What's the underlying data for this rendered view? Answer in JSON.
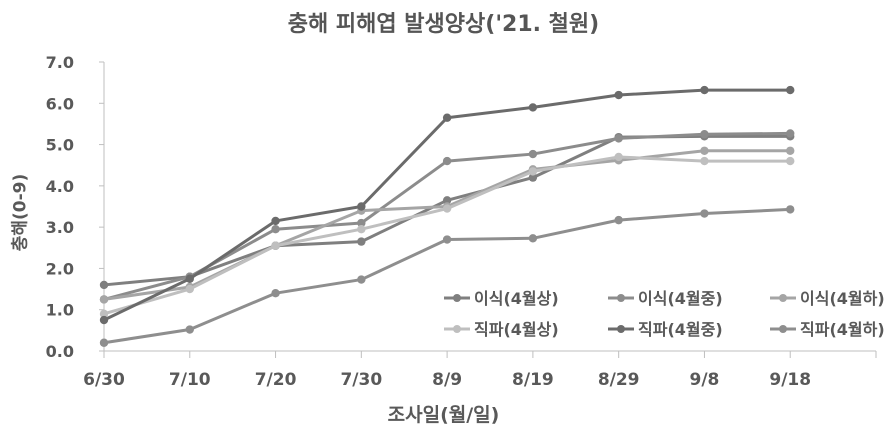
{
  "chart_data": {
    "type": "line",
    "title": "충해 피해엽 발생양상('21. 철원)",
    "xlabel": "조사일(월/일)",
    "ylabel": "충해(0-9)",
    "categories": [
      "6/30",
      "7/10",
      "7/20",
      "7/30",
      "8/9",
      "8/19",
      "8/29",
      "9/8",
      "9/18"
    ],
    "ylim": [
      0,
      7
    ],
    "yticks": [
      "0.0",
      "1.0",
      "2.0",
      "3.0",
      "4.0",
      "5.0",
      "6.0",
      "7.0"
    ],
    "grid": false,
    "legend_position": "lower-right",
    "series": [
      {
        "name": "이식(4월상)",
        "color": "#7f7f7f",
        "values": [
          1.6,
          1.8,
          2.55,
          2.65,
          3.65,
          4.2,
          5.18,
          5.2,
          5.2
        ]
      },
      {
        "name": "이식(4월중)",
        "color": "#8c8c8c",
        "values": [
          1.25,
          1.8,
          2.95,
          3.1,
          4.6,
          4.77,
          5.15,
          5.25,
          5.27
        ]
      },
      {
        "name": "이식(4월하)",
        "color": "#a5a5a5",
        "values": [
          1.25,
          1.55,
          2.55,
          3.4,
          3.5,
          4.4,
          4.62,
          4.85,
          4.85
        ]
      },
      {
        "name": "직파(4월상)",
        "color": "#bfbfbf",
        "values": [
          0.9,
          1.5,
          2.55,
          2.95,
          3.45,
          4.35,
          4.7,
          4.6,
          4.6
        ]
      },
      {
        "name": "직파(4월중)",
        "color": "#6b6b6b",
        "values": [
          0.75,
          1.75,
          3.15,
          3.5,
          5.65,
          5.9,
          6.2,
          6.32,
          6.32
        ]
      },
      {
        "name": "직파(4월하)",
        "color": "#8e8e8e",
        "values": [
          0.2,
          0.52,
          1.4,
          1.73,
          2.7,
          2.73,
          3.17,
          3.33,
          3.43
        ]
      }
    ]
  }
}
